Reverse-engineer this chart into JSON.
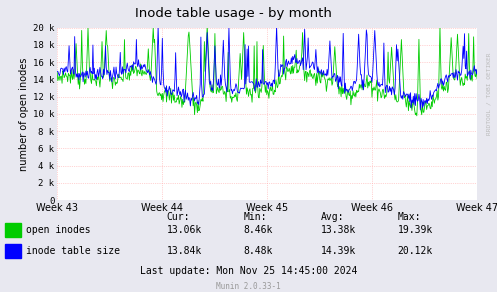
{
  "title": "Inode table usage - by month",
  "ylabel": "number of open inodes",
  "xlabel_ticks": [
    "Week 43",
    "Week 44",
    "Week 45",
    "Week 46",
    "Week 47"
  ],
  "ylim": [
    0,
    20000
  ],
  "yticks": [
    0,
    2000,
    4000,
    6000,
    8000,
    10000,
    12000,
    14000,
    16000,
    18000,
    20000
  ],
  "ytick_labels": [
    "0",
    "2 k",
    "4 k",
    "6 k",
    "8 k",
    "10 k",
    "12 k",
    "14 k",
    "16 k",
    "18 k",
    "20 k"
  ],
  "line1_color": "#00cc00",
  "line2_color": "#0000ff",
  "bg_color": "#e8e8f0",
  "plot_bg_color": "#ffffff",
  "grid_color": "#ffaaaa",
  "legend_labels": [
    "open inodes",
    "inode table size"
  ],
  "legend_colors": [
    "#00cc00",
    "#0000ff"
  ],
  "stats_header": [
    "Cur:",
    "Min:",
    "Avg:",
    "Max:"
  ],
  "stats_row1": [
    "13.06k",
    "8.46k",
    "13.38k",
    "19.39k"
  ],
  "stats_row2": [
    "13.84k",
    "8.48k",
    "14.39k",
    "20.12k"
  ],
  "last_update": "Last update: Mon Nov 25 14:45:00 2024",
  "munin_label": "Munin 2.0.33-1",
  "rrdtool_label": "RRDTOOL / TOBI OETIKER"
}
